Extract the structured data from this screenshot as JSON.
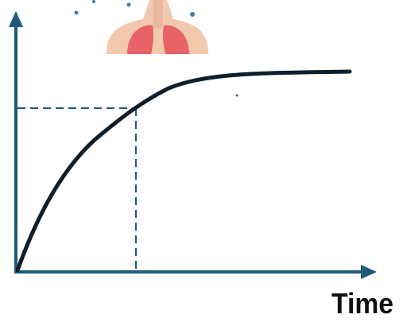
{
  "x_axis_label": "Time"
}
